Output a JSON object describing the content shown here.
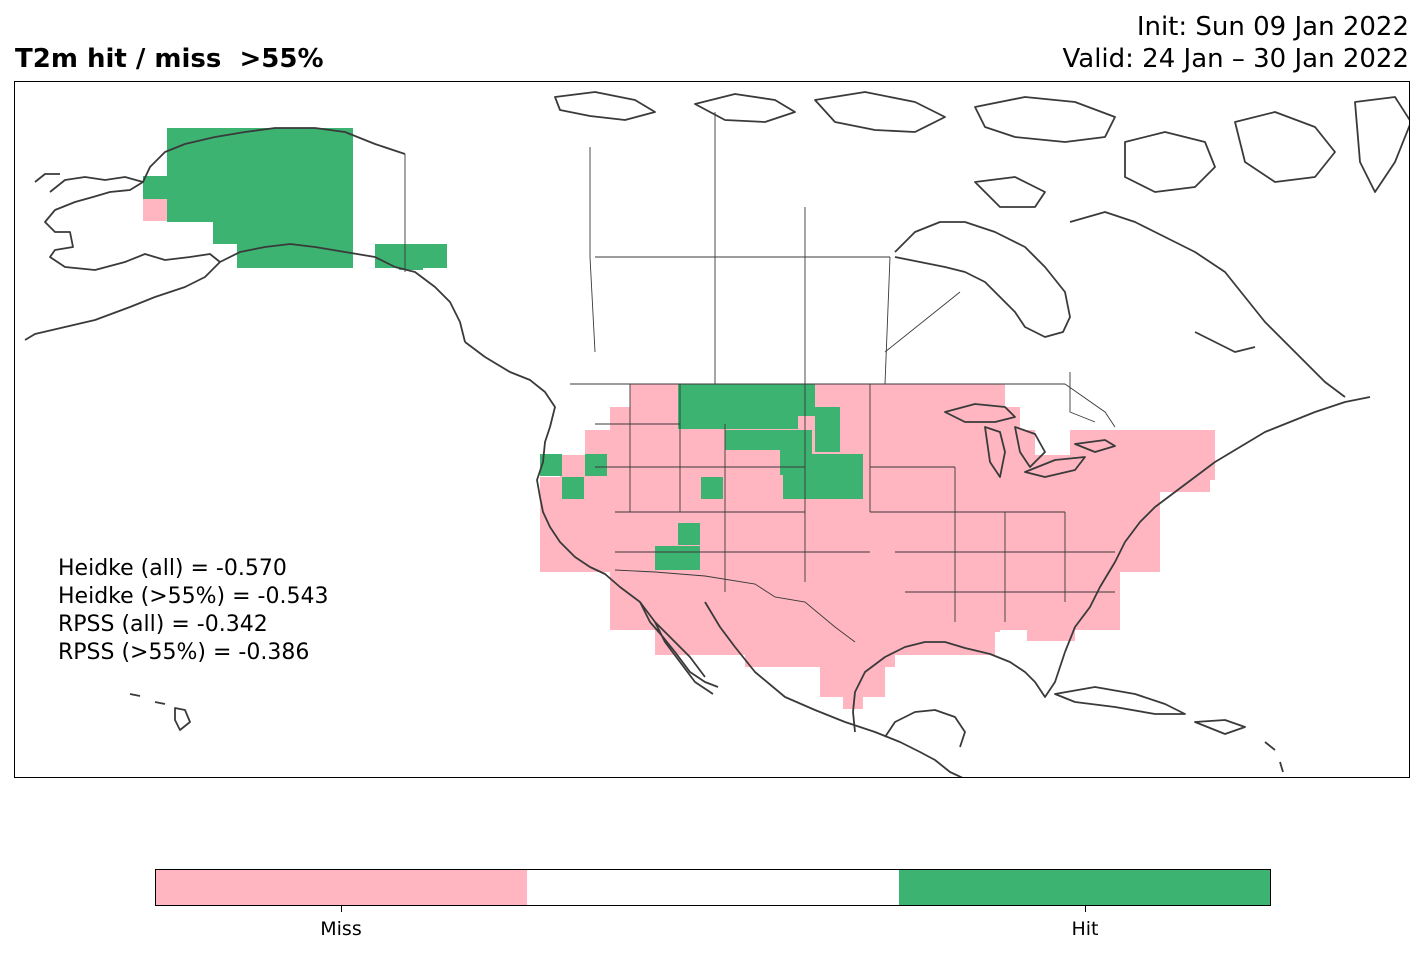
{
  "header": {
    "title": "T2m hit / miss  >55%",
    "init": "Init: Sun 09 Jan 2022",
    "valid": "Valid: 24 Jan – 30 Jan 2022"
  },
  "stats": [
    "Heidke (all) = -0.570",
    "Heidke (>55%) = -0.543",
    "RPSS (all) = -0.342",
    "RPSS (>55%) = -0.386"
  ],
  "colorbar": {
    "colors": [
      "#ffb6c1",
      "#ffffff",
      "#3cb371"
    ],
    "labels": [
      "Miss",
      "Hit"
    ]
  },
  "legend_colors": {
    "miss": "#ffb6c1",
    "hit": "#3cb371",
    "coast": "#3a3a3a"
  }
}
